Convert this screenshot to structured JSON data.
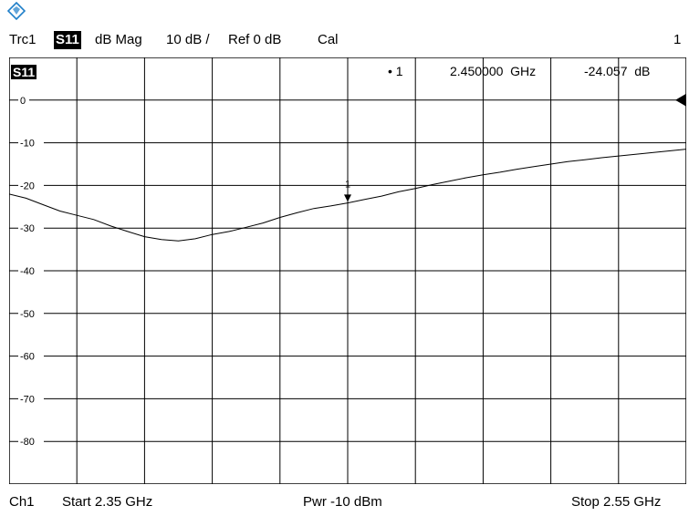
{
  "header": {
    "trace": "Trc1",
    "param": "S11",
    "format": "dB Mag",
    "scale": "10 dB /",
    "ref": "Ref 0 dB",
    "cal": "Cal",
    "channel_num": "1"
  },
  "plot": {
    "param_badge": "S11",
    "marker_label": "• 1",
    "marker_freq": "2.450000  GHz",
    "marker_value": "-24.057  dB",
    "marker_tag": "1"
  },
  "footer": {
    "channel": "Ch1",
    "start": "Start  2.35 GHz",
    "power": "Pwr  -10 dBm",
    "stop": "Stop  2.55 GHz"
  },
  "colors": {
    "trace": "#000000",
    "grid": "#000000",
    "background": "#ffffff",
    "logo": "#1f7fc9"
  },
  "chart_data": {
    "type": "line",
    "title": "",
    "xlabel": "",
    "ylabel": "",
    "xlim": [
      2.35,
      2.55
    ],
    "ylim": [
      -90,
      10
    ],
    "grid": true,
    "y_ticks": [
      0,
      -10,
      -20,
      -30,
      -40,
      -50,
      -60,
      -70,
      -80
    ],
    "y_tick_labels": [
      "0",
      "-10",
      "-20",
      "-30",
      "-40",
      "-50",
      "-60",
      "-70",
      "-80"
    ],
    "reference_level": 0,
    "series": [
      {
        "x": [
          2.35,
          2.355,
          2.36,
          2.365,
          2.37,
          2.375,
          2.38,
          2.385,
          2.39,
          2.395,
          2.4,
          2.405,
          2.41,
          2.415,
          2.42,
          2.425,
          2.43,
          2.435,
          2.44,
          2.445,
          2.45,
          2.455,
          2.46,
          2.465,
          2.47,
          2.475,
          2.48,
          2.485,
          2.49,
          2.495,
          2.5,
          2.505,
          2.51,
          2.515,
          2.52,
          2.525,
          2.53,
          2.535,
          2.54,
          2.545,
          2.55
        ],
        "y": [
          -22.0,
          -23.0,
          -24.5,
          -26.0,
          -27.0,
          -28.0,
          -29.5,
          -30.8,
          -32.0,
          -32.7,
          -33.0,
          -32.5,
          -31.5,
          -30.8,
          -29.8,
          -28.8,
          -27.5,
          -26.4,
          -25.4,
          -24.8,
          -24.1,
          -23.3,
          -22.5,
          -21.5,
          -20.7,
          -19.8,
          -19.0,
          -18.2,
          -17.5,
          -16.9,
          -16.2,
          -15.6,
          -15.0,
          -14.4,
          -14.0,
          -13.5,
          -13.1,
          -12.7,
          -12.3,
          -11.9,
          -11.5
        ]
      }
    ],
    "markers": [
      {
        "label": "1",
        "x": 2.45,
        "y": -24.057
      }
    ]
  }
}
